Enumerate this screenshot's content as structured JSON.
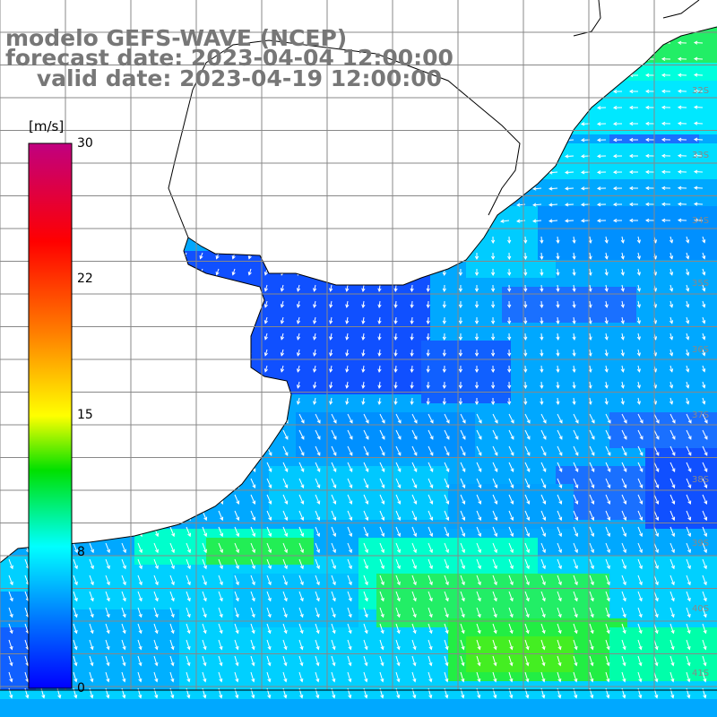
{
  "title": {
    "line1": "modelo GEFS-WAVE (NCEP)",
    "line2": "forecast date: 2023-04-04 12:00:00",
    "line3": "    valid date: 2023-04-19 12:00:00"
  },
  "colorbar": {
    "unit": "[m/s]",
    "ticks": [
      "30",
      "22",
      "15",
      "8",
      "0"
    ],
    "range": [
      0,
      30
    ],
    "colors": [
      "#0000ff",
      "#0080ff",
      "#00ffff",
      "#00ff00",
      "#ffff00",
      "#ff8000",
      "#ff0000",
      "#c00080"
    ]
  },
  "map": {
    "ocean_colors": {
      "low": "#1050ff",
      "mid": "#00b4ff",
      "high": "#00ffcc",
      "green": "#22ee44"
    },
    "land_color": "#ffffff",
    "grid_color": "#888888",
    "arrow_color": "#ffffff",
    "lat_labels": [
      "32S",
      "33S",
      "34S",
      "35S",
      "36S",
      "37S",
      "38S",
      "39S",
      "40S",
      "41S"
    ]
  }
}
